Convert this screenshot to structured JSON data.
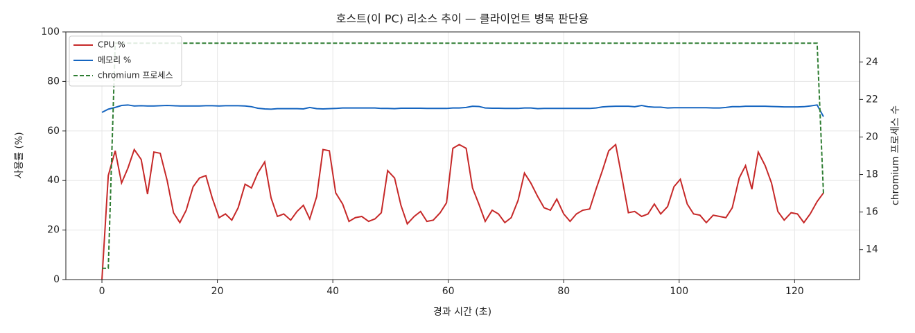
{
  "chart_data": {
    "type": "line",
    "title": "호스트(이 PC) 리소스 추이 — 클라이언트 병목 판단용",
    "x_label": "경과 시간 (초)",
    "y_label": "사용률 (%)",
    "y2_label": "chromium 프로세스 수",
    "x": [
      0,
      1.1,
      2.3,
      3.4,
      4.5,
      5.6,
      6.8,
      7.9,
      9.0,
      10.1,
      11.3,
      12.4,
      13.5,
      14.6,
      15.8,
      16.9,
      18.0,
      19.1,
      20.3,
      21.4,
      22.5,
      23.6,
      24.8,
      25.9,
      27.0,
      28.2,
      29.3,
      30.4,
      31.5,
      32.7,
      33.8,
      34.9,
      36.0,
      37.2,
      38.3,
      39.4,
      40.5,
      41.7,
      42.8,
      43.9,
      45.0,
      46.2,
      47.3,
      48.4,
      49.5,
      50.7,
      51.8,
      52.9,
      54.1,
      55.2,
      56.3,
      57.4,
      58.6,
      59.7,
      60.8,
      61.9,
      63.1,
      64.2,
      65.3,
      66.4,
      67.6,
      68.7,
      69.8,
      70.9,
      72.1,
      73.2,
      74.3,
      75.5,
      76.6,
      77.7,
      78.8,
      80.0,
      81.1,
      82.2,
      83.3,
      84.5,
      85.6,
      86.7,
      87.8,
      89.0,
      90.1,
      91.2,
      92.3,
      93.5,
      94.6,
      95.7,
      96.8,
      98.0,
      99.1,
      100.2,
      101.4,
      102.5,
      103.6,
      104.7,
      105.9,
      107.0,
      108.1,
      109.2,
      110.4,
      111.5,
      112.6,
      113.7,
      114.9,
      116.0,
      117.1,
      118.2,
      119.4,
      120.5,
      121.6,
      122.7,
      123.9,
      125.0
    ],
    "series": [
      {
        "name": "CPU %",
        "color": "#c62828",
        "linestyle": "solid",
        "axis": "y",
        "values": [
          0,
          42,
          52,
          39,
          45,
          52.5,
          48.5,
          34.5,
          51.5,
          51,
          40,
          27,
          23,
          28,
          37.5,
          41,
          42,
          33,
          25,
          26.5,
          24,
          29,
          38.5,
          37,
          43,
          47.5,
          33,
          25.5,
          26.5,
          24,
          27.5,
          30,
          24.5,
          33.5,
          52.5,
          52,
          35,
          30.5,
          23.5,
          25,
          25.5,
          23.5,
          24.5,
          27,
          44,
          41,
          30,
          22.5,
          25.5,
          27.5,
          23.5,
          24,
          27,
          31,
          53,
          54.5,
          53,
          37,
          30.5,
          23.5,
          28,
          26.5,
          23,
          25,
          32,
          43,
          39,
          33.5,
          29,
          28,
          32.5,
          26.5,
          23.5,
          26.5,
          28,
          28.5,
          36.5,
          44,
          52,
          54.5,
          41,
          27,
          27.5,
          25.5,
          26.5,
          30.5,
          26.5,
          29.5,
          37.5,
          40.5,
          30.5,
          26.5,
          26,
          23,
          26,
          25.5,
          25,
          29,
          41,
          46,
          36.5,
          51.5,
          46,
          39,
          27.5,
          24,
          27,
          26.5,
          23,
          26.5,
          31.5,
          35
        ]
      },
      {
        "name": "메모리 %",
        "color": "#1565c0",
        "linestyle": "solid",
        "axis": "y",
        "values": [
          67.5,
          68.8,
          69.5,
          70.3,
          70.5,
          70.1,
          70.2,
          70.1,
          70.1,
          70.2,
          70.3,
          70.2,
          70.1,
          70.1,
          70.1,
          70.1,
          70.2,
          70.2,
          70.1,
          70.2,
          70.2,
          70.2,
          70.1,
          69.8,
          69.2,
          68.9,
          68.8,
          69.0,
          69.0,
          69.0,
          69.0,
          68.9,
          69.5,
          69.0,
          68.9,
          69.0,
          69.1,
          69.3,
          69.3,
          69.3,
          69.3,
          69.3,
          69.3,
          69.1,
          69.1,
          69.0,
          69.2,
          69.2,
          69.2,
          69.2,
          69.1,
          69.1,
          69.1,
          69.1,
          69.3,
          69.3,
          69.5,
          70.0,
          69.9,
          69.3,
          69.2,
          69.2,
          69.1,
          69.1,
          69.1,
          69.3,
          69.3,
          69.0,
          69.1,
          69.1,
          69.1,
          69.1,
          69.1,
          69.1,
          69.1,
          69.1,
          69.3,
          69.7,
          69.9,
          70.0,
          70.0,
          70.0,
          69.8,
          70.3,
          69.8,
          69.6,
          69.6,
          69.3,
          69.4,
          69.4,
          69.4,
          69.4,
          69.4,
          69.4,
          69.3,
          69.3,
          69.5,
          69.8,
          69.8,
          70.0,
          70.0,
          70.0,
          70.0,
          69.9,
          69.8,
          69.7,
          69.7,
          69.7,
          69.8,
          70.1,
          70.5,
          65.8
        ]
      },
      {
        "name": "chromium 프로세스",
        "color": "#2e7d32",
        "linestyle": "dashed",
        "axis": "y2",
        "values": [
          13,
          13,
          25,
          25,
          25,
          25,
          25,
          25,
          25,
          25,
          25,
          25,
          25,
          25,
          25,
          25,
          25,
          25,
          25,
          25,
          25,
          25,
          25,
          25,
          25,
          25,
          25,
          25,
          25,
          25,
          25,
          25,
          25,
          25,
          25,
          25,
          25,
          25,
          25,
          25,
          25,
          25,
          25,
          25,
          25,
          25,
          25,
          25,
          25,
          25,
          25,
          25,
          25,
          25,
          25,
          25,
          25,
          25,
          25,
          25,
          25,
          25,
          25,
          25,
          25,
          25,
          25,
          25,
          25,
          25,
          25,
          25,
          25,
          25,
          25,
          25,
          25,
          25,
          25,
          25,
          25,
          25,
          25,
          25,
          25,
          25,
          25,
          25,
          25,
          25,
          25,
          25,
          25,
          25,
          25,
          25,
          25,
          25,
          25,
          25,
          25,
          25,
          25,
          25,
          25,
          25,
          25,
          25,
          25,
          25,
          25,
          17
        ]
      }
    ],
    "xlim": [
      -6.25,
      131.25
    ],
    "xticks": [
      0,
      20,
      40,
      60,
      80,
      100,
      120
    ],
    "ylim": [
      0,
      100
    ],
    "yticks": [
      0,
      20,
      40,
      60,
      80,
      100
    ],
    "y2lim": [
      12.4,
      25.6
    ],
    "y2ticks": [
      14,
      16,
      18,
      20,
      22,
      24
    ],
    "grid": true,
    "legend": "upper left"
  }
}
